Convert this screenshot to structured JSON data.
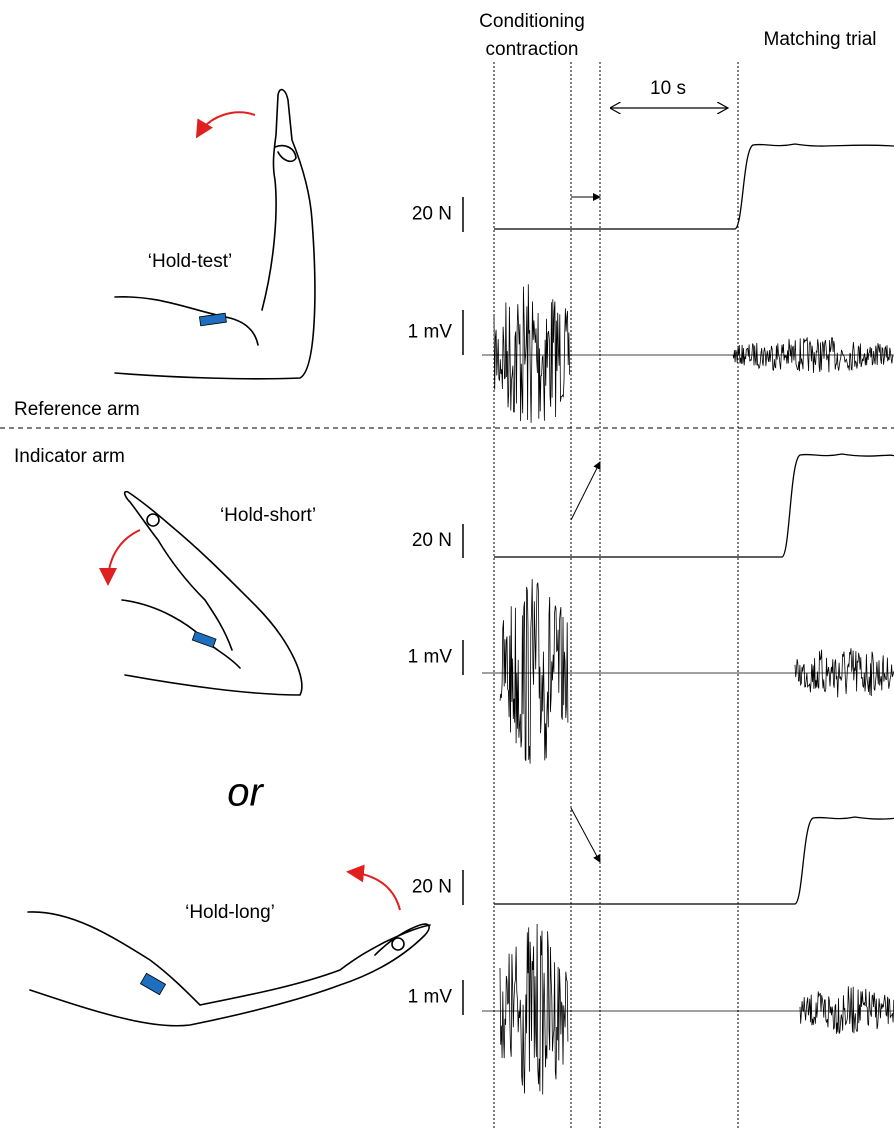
{
  "header": {
    "conditioning": [
      "Conditioning",
      "contraction"
    ],
    "matching": "Matching trial",
    "time_scale": "10 s"
  },
  "reference_arm": "Reference arm",
  "indicator_arm": "Indicator arm",
  "separator": "or",
  "panels": [
    {
      "label": "‘Hold-test’",
      "force_scale": "20 N",
      "emg_scale": "1 mV"
    },
    {
      "label": "‘Hold-short’",
      "force_scale": "20 N",
      "emg_scale": "1 mV"
    },
    {
      "label": "‘Hold-long’",
      "force_scale": "20 N",
      "emg_scale": "1 mV"
    }
  ]
}
